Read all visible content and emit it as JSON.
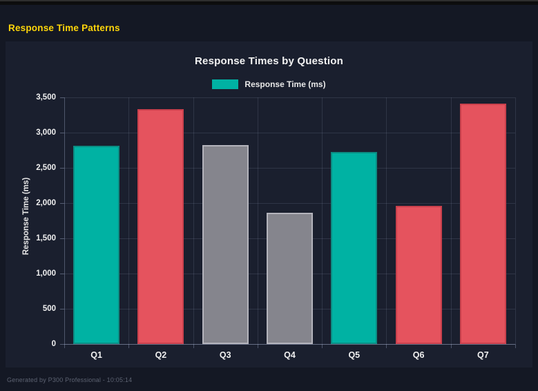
{
  "page": {
    "title": "Response Time Patterns",
    "footer": "Generated by P300 Professional - 10:05:14"
  },
  "chart": {
    "title": "Response Times by Question",
    "legend_label": "Response Time (ms)",
    "y_axis_label": "Response Time (ms)"
  },
  "colors": {
    "accent_yellow": "#ffd60a",
    "card_background": "#1a1f2e",
    "page_background": "#141824",
    "teal": "#00b2a3",
    "red": "#e5535e",
    "gray": "#85858d"
  },
  "bar_styles": {
    "teal": {
      "fill": "#00b2a3",
      "border": "#0c8b82"
    },
    "red": {
      "fill": "#e5535e",
      "border": "#c9404c"
    },
    "gray": {
      "fill": "#85858d",
      "border": "#b4b4bc"
    }
  },
  "chart_data": {
    "type": "bar",
    "title": "Response Times by Question",
    "categories": [
      "Q1",
      "Q2",
      "Q3",
      "Q4",
      "Q5",
      "Q6",
      "Q7"
    ],
    "values": [
      2810,
      3330,
      2820,
      1860,
      2730,
      1960,
      3410
    ],
    "bar_colors": [
      "teal",
      "red",
      "gray",
      "gray",
      "teal",
      "red",
      "red"
    ],
    "series": [
      {
        "name": "Response Time (ms)",
        "values": [
          2810,
          3330,
          2820,
          1860,
          2730,
          1960,
          3410
        ]
      }
    ],
    "xlabel": "",
    "ylabel": "Response Time (ms)",
    "ylim": [
      0,
      3500
    ],
    "ytick_interval": 500,
    "ytick_labels": [
      "0",
      "500",
      "1,000",
      "1,500",
      "2,000",
      "2,500",
      "3,000",
      "3,500"
    ],
    "legend": [
      "Response Time (ms)"
    ],
    "legend_position": "top",
    "grid": true
  }
}
